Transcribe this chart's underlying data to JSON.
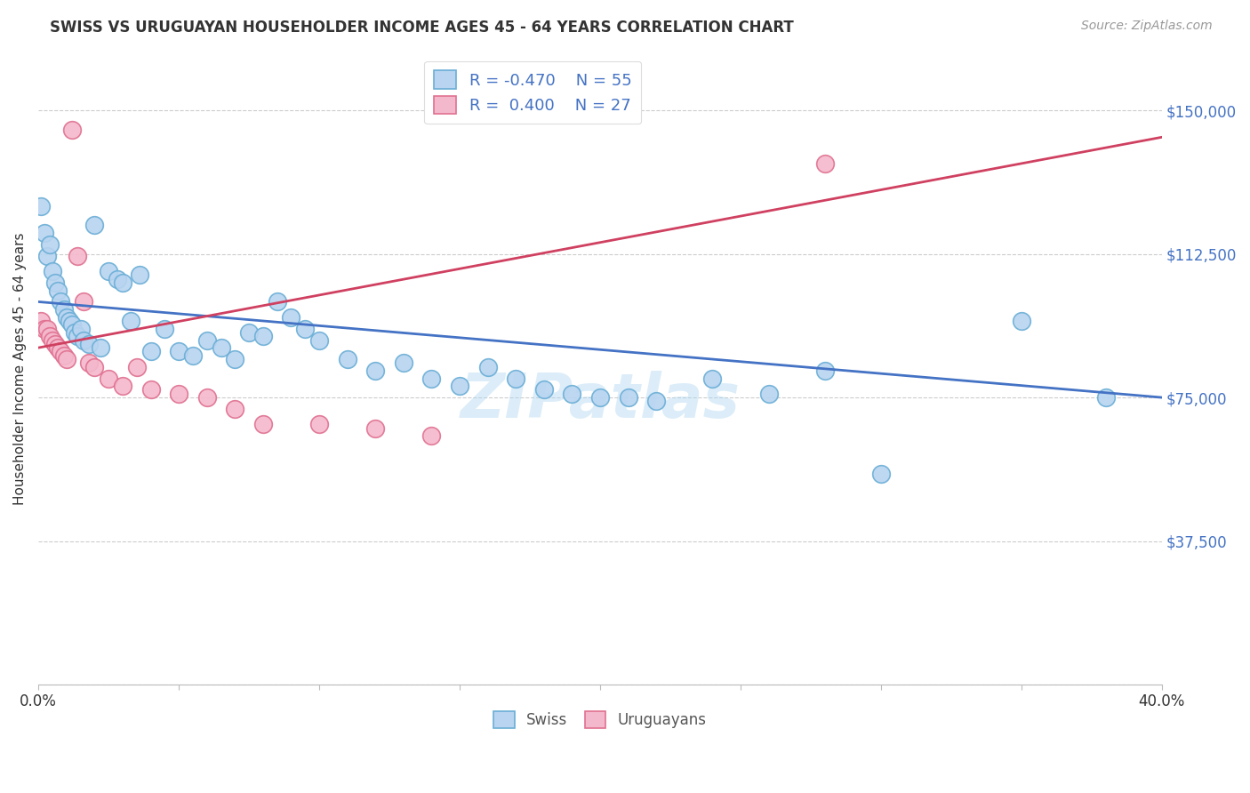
{
  "title": "SWISS VS URUGUAYAN HOUSEHOLDER INCOME AGES 45 - 64 YEARS CORRELATION CHART",
  "source": "Source: ZipAtlas.com",
  "ylabel": "Householder Income Ages 45 - 64 years",
  "xlim": [
    0.0,
    0.4
  ],
  "ylim": [
    0,
    165000
  ],
  "yticks": [
    0,
    37500,
    75000,
    112500,
    150000
  ],
  "ytick_labels": [
    "",
    "$37,500",
    "$75,000",
    "$112,500",
    "$150,000"
  ],
  "xticks": [
    0.0,
    0.05,
    0.1,
    0.15,
    0.2,
    0.25,
    0.3,
    0.35,
    0.4
  ],
  "swiss_color": "#b8d4f0",
  "swiss_edge_color": "#6aaed6",
  "uruguayan_color": "#f4b8cc",
  "uruguayan_edge_color": "#e07090",
  "swiss_line_color": "#4472c4",
  "uruguayan_line_color": "#d04060",
  "swiss_R": -0.47,
  "swiss_N": 55,
  "uruguayan_R": 0.4,
  "uruguayan_N": 27,
  "watermark": "ZIPatlas",
  "swiss_line_x0": 0.0,
  "swiss_line_y0": 100000,
  "swiss_line_x1": 0.4,
  "swiss_line_y1": 75000,
  "uru_line_x0": 0.0,
  "uru_line_y0": 88000,
  "uru_line_x1": 0.4,
  "uru_line_y1": 143000,
  "swiss_x": [
    0.001,
    0.002,
    0.003,
    0.004,
    0.005,
    0.006,
    0.007,
    0.008,
    0.009,
    0.01,
    0.011,
    0.012,
    0.013,
    0.014,
    0.015,
    0.016,
    0.018,
    0.02,
    0.022,
    0.025,
    0.028,
    0.03,
    0.033,
    0.036,
    0.04,
    0.045,
    0.05,
    0.055,
    0.06,
    0.065,
    0.07,
    0.075,
    0.08,
    0.085,
    0.09,
    0.095,
    0.1,
    0.11,
    0.12,
    0.13,
    0.14,
    0.15,
    0.16,
    0.17,
    0.18,
    0.19,
    0.2,
    0.21,
    0.22,
    0.24,
    0.26,
    0.28,
    0.3,
    0.35,
    0.38
  ],
  "swiss_y": [
    125000,
    118000,
    112000,
    115000,
    108000,
    105000,
    103000,
    100000,
    98000,
    96000,
    95000,
    94000,
    92000,
    91000,
    93000,
    90000,
    89000,
    120000,
    88000,
    108000,
    106000,
    105000,
    95000,
    107000,
    87000,
    93000,
    87000,
    86000,
    90000,
    88000,
    85000,
    92000,
    91000,
    100000,
    96000,
    93000,
    90000,
    85000,
    82000,
    84000,
    80000,
    78000,
    83000,
    80000,
    77000,
    76000,
    75000,
    75000,
    74000,
    80000,
    76000,
    82000,
    55000,
    95000,
    75000
  ],
  "uruguayan_x": [
    0.001,
    0.002,
    0.003,
    0.004,
    0.005,
    0.006,
    0.007,
    0.008,
    0.009,
    0.01,
    0.012,
    0.014,
    0.016,
    0.018,
    0.02,
    0.025,
    0.03,
    0.035,
    0.04,
    0.05,
    0.06,
    0.07,
    0.08,
    0.1,
    0.12,
    0.14,
    0.28
  ],
  "uruguayan_y": [
    95000,
    93000,
    93000,
    91000,
    90000,
    89000,
    88000,
    87000,
    86000,
    85000,
    145000,
    112000,
    100000,
    84000,
    83000,
    80000,
    78000,
    83000,
    77000,
    76000,
    75000,
    72000,
    68000,
    68000,
    67000,
    65000,
    136000
  ]
}
